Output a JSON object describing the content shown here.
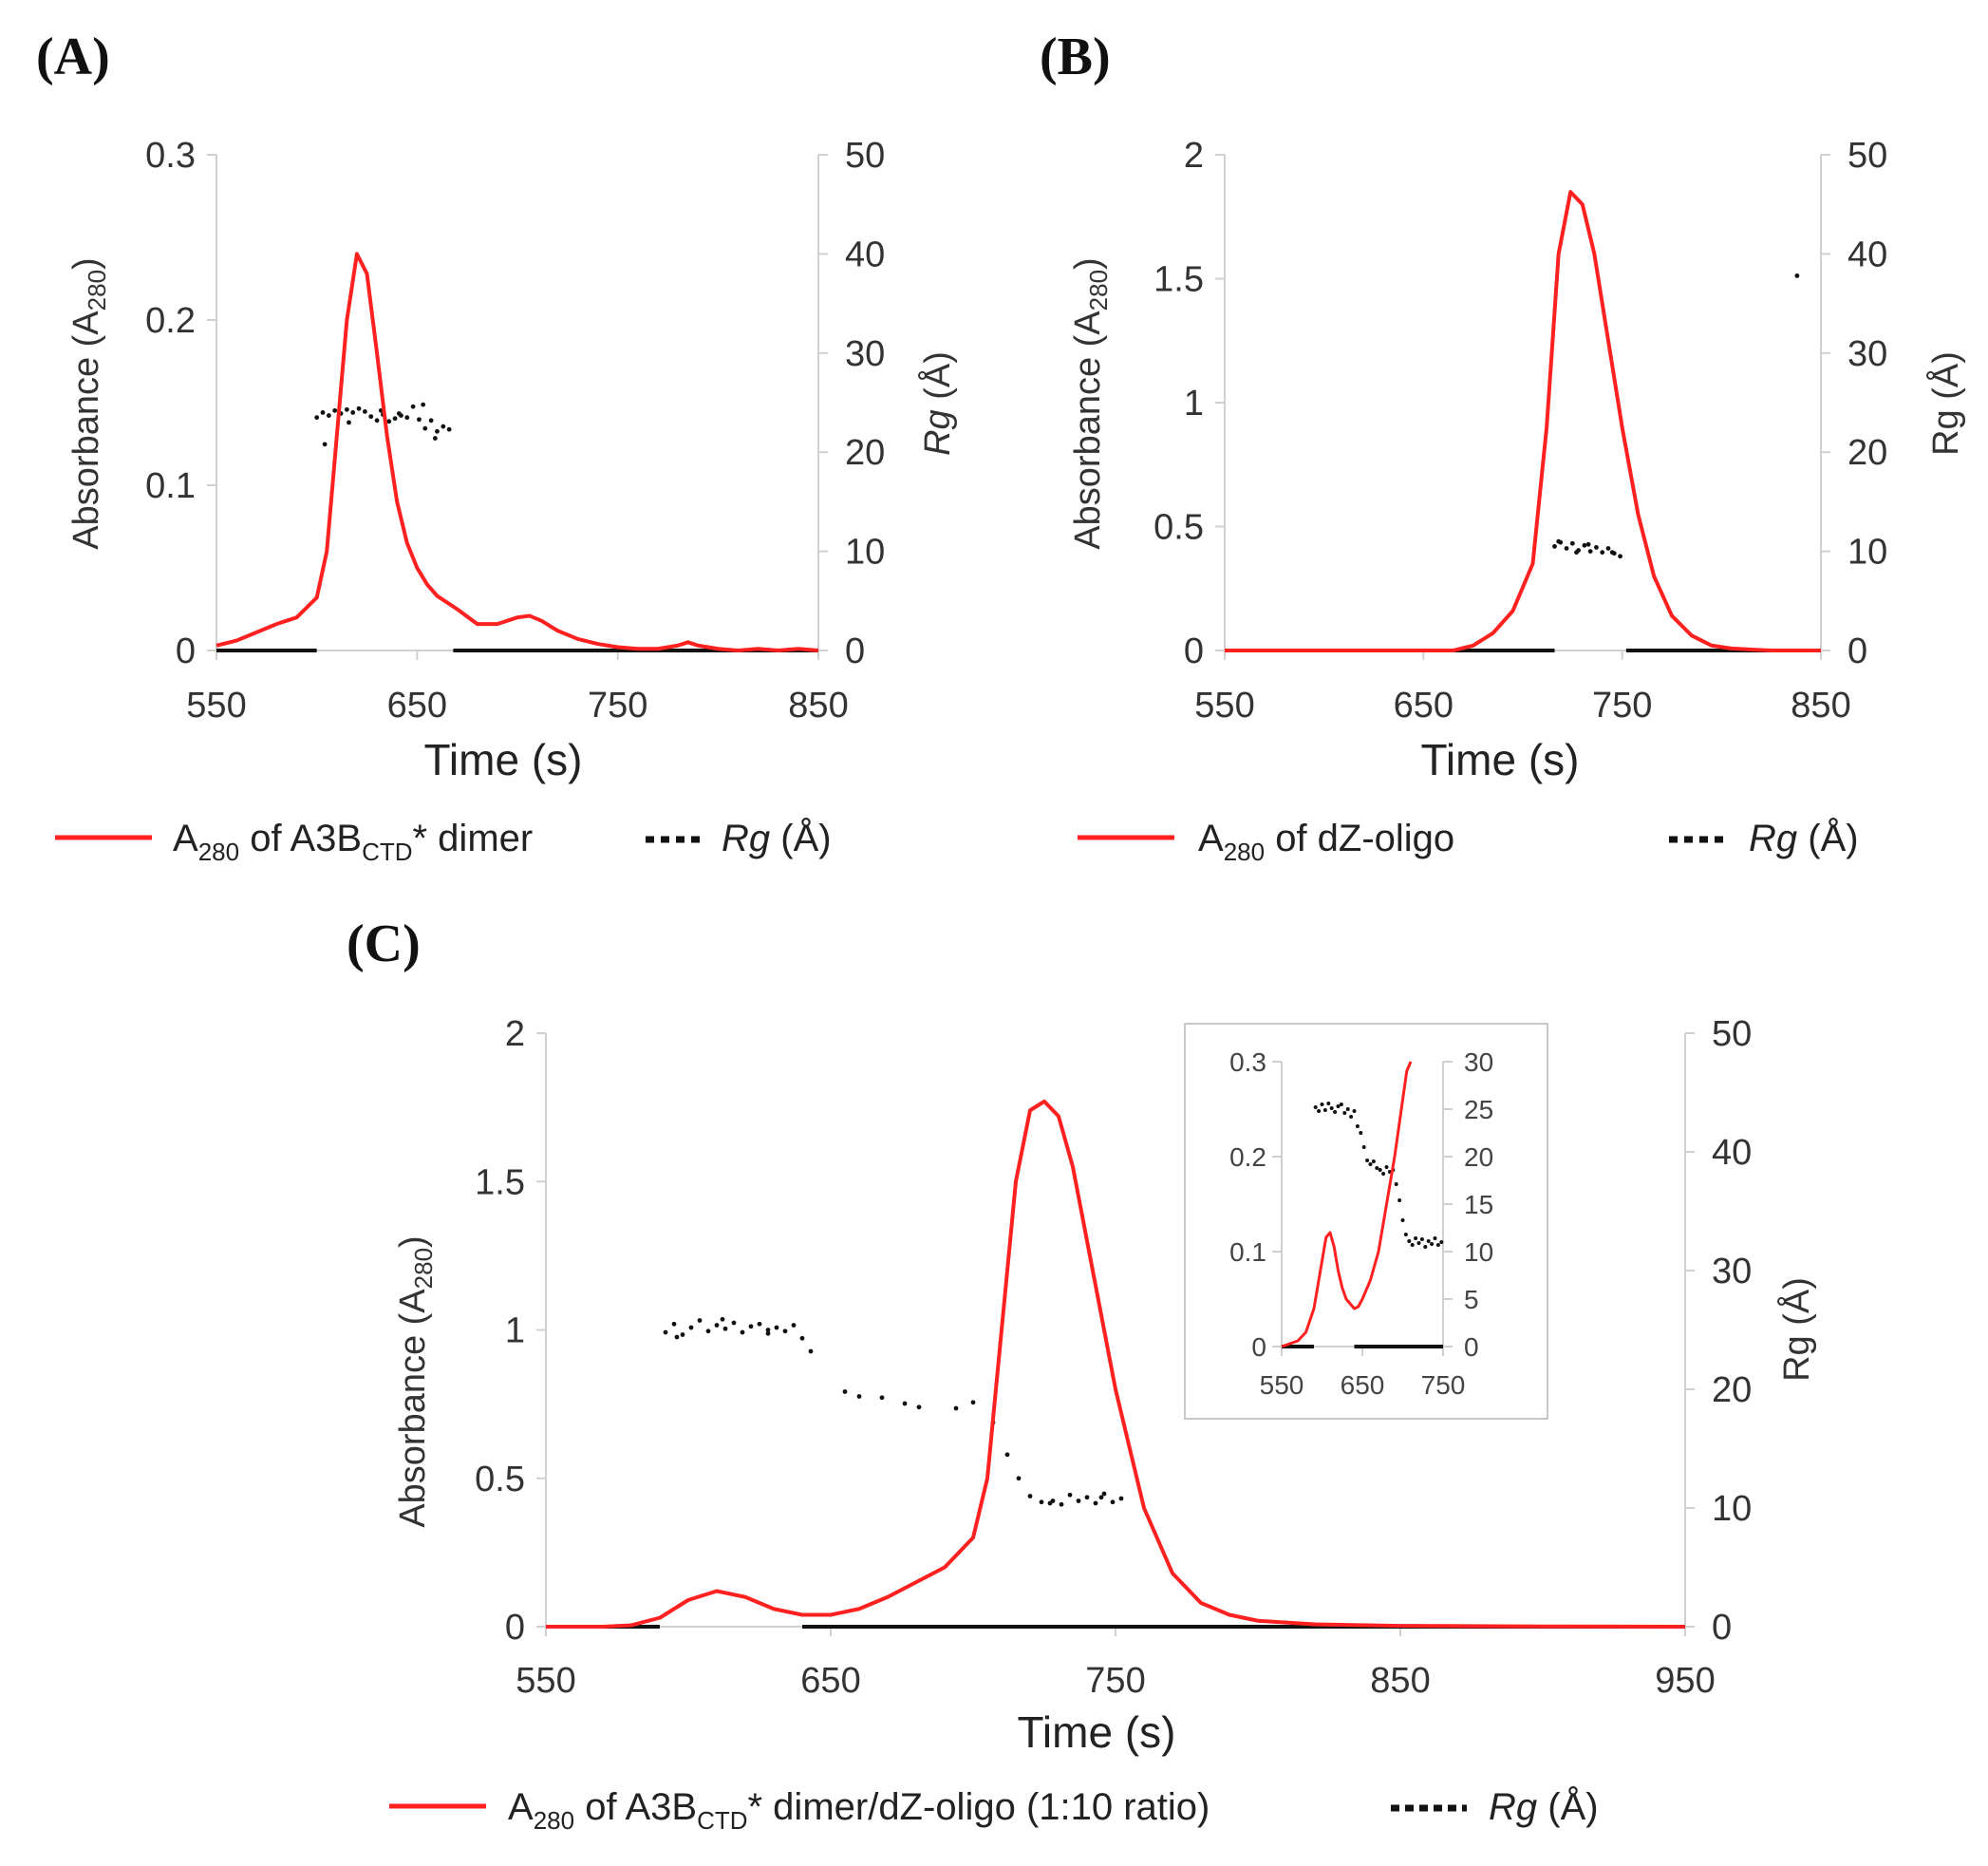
{
  "colors": {
    "absorbance": "#ff2020",
    "rg": "#111111",
    "axis": "#d0d0d0"
  },
  "chart_data": [
    {
      "id": "A",
      "panel_label": "(A)",
      "type": "line",
      "xlabel": "Time (s)",
      "ylabel_main": "Absorbance (A",
      "ylabel_sub": "280",
      "ylabel_end": ")",
      "y2label_italic": "Rg",
      "y2label_rest": " (Å)",
      "xlim": [
        550,
        850
      ],
      "ylim": [
        0,
        0.3
      ],
      "y2lim": [
        0,
        50
      ],
      "xticks": [
        "550",
        "650",
        "750",
        "850"
      ],
      "yticks": [
        "0",
        "0.1",
        "0.2",
        "0.3"
      ],
      "y2ticks": [
        "0",
        "10",
        "20",
        "30",
        "40",
        "50"
      ],
      "legend": {
        "abs_pre": "A",
        "abs_sub1": "280",
        "abs_mid": " of A3B",
        "abs_sub2": "CTD",
        "abs_post": "* dimer",
        "rg_italic": "Rg",
        "rg_rest": " (Å)"
      },
      "absorbance": {
        "x": [
          550,
          560,
          570,
          580,
          590,
          600,
          605,
          610,
          615,
          620,
          625,
          630,
          635,
          640,
          645,
          650,
          655,
          660,
          670,
          680,
          690,
          700,
          706,
          712,
          720,
          730,
          740,
          750,
          760,
          770,
          780,
          785,
          790,
          800,
          810,
          820,
          830,
          840,
          850
        ],
        "y": [
          0.003,
          0.006,
          0.011,
          0.016,
          0.02,
          0.032,
          0.06,
          0.13,
          0.2,
          0.24,
          0.228,
          0.18,
          0.13,
          0.09,
          0.065,
          0.05,
          0.04,
          0.033,
          0.025,
          0.016,
          0.016,
          0.02,
          0.021,
          0.018,
          0.012,
          0.007,
          0.004,
          0.002,
          0.001,
          0.001,
          0.003,
          0.005,
          0.003,
          0.001,
          0.0,
          0.001,
          0.0,
          0.001,
          0.0
        ]
      },
      "rg_points": {
        "x": [
          600,
          603,
          606,
          609,
          612,
          615,
          618,
          621,
          624,
          627,
          630,
          633,
          636,
          639,
          642,
          645,
          648,
          651,
          654,
          657,
          660,
          663,
          666,
          604,
          616,
          632,
          641,
          653,
          659
        ],
        "y": [
          23.5,
          24,
          23.7,
          24.2,
          23.9,
          24.3,
          24,
          24.4,
          24.1,
          23.6,
          23.2,
          23.8,
          23.1,
          23.4,
          23.7,
          23.5,
          24.6,
          23.3,
          22.4,
          23.2,
          22.1,
          22.6,
          22.3,
          20.8,
          23,
          24.2,
          23.9,
          24.8,
          21.4
        ]
      },
      "rg_baseline": [
        [
          550,
          600
        ],
        [
          668,
          850
        ]
      ]
    },
    {
      "id": "B",
      "panel_label": "(B)",
      "type": "line",
      "xlabel": "Time (s)",
      "ylabel_main": "Absorbance (A",
      "ylabel_sub": "280",
      "ylabel_end": ")",
      "y2label_italic": "",
      "y2label_rest": "Rg (Å)",
      "xlim": [
        550,
        850
      ],
      "ylim": [
        0,
        2
      ],
      "y2lim": [
        0,
        50
      ],
      "xticks": [
        "550",
        "650",
        "750",
        "850"
      ],
      "yticks": [
        "0",
        "0.5",
        "1",
        "1.5",
        "2"
      ],
      "y2ticks": [
        "0",
        "10",
        "20",
        "30",
        "40",
        "50"
      ],
      "legend": {
        "abs_pre": "A",
        "abs_sub1": "280",
        "abs_mid": " of dZ-oligo",
        "abs_sub2": "",
        "abs_post": "",
        "rg_italic": "Rg",
        "rg_rest": " (Å)"
      },
      "absorbance": {
        "x": [
          550,
          600,
          650,
          665,
          675,
          685,
          695,
          705,
          712,
          718,
          724,
          730,
          736,
          742,
          750,
          758,
          766,
          775,
          785,
          795,
          805,
          815,
          825,
          850
        ],
        "y": [
          0,
          0,
          0,
          0,
          0.02,
          0.07,
          0.16,
          0.35,
          0.9,
          1.6,
          1.85,
          1.8,
          1.6,
          1.3,
          0.9,
          0.55,
          0.3,
          0.14,
          0.06,
          0.02,
          0.008,
          0.004,
          0.0,
          0.0
        ]
      },
      "rg_points": {
        "x": [
          716,
          719,
          722,
          725,
          728,
          731,
          734,
          737,
          740,
          743,
          746,
          749,
          718,
          727,
          733,
          745,
          838
        ],
        "y": [
          10.5,
          10.9,
          10.3,
          10.8,
          10.1,
          10.6,
          10.0,
          10.4,
          9.9,
          10.3,
          9.8,
          9.5,
          11.0,
          9.9,
          10.7,
          9.9,
          37.8
        ]
      },
      "rg_baseline": [
        [
          550,
          716
        ],
        [
          752,
          850
        ]
      ]
    },
    {
      "id": "C",
      "panel_label": "(C)",
      "type": "line",
      "xlabel": "Time (s)",
      "ylabel_main": "Absorbance (A",
      "ylabel_sub": "280",
      "ylabel_end": ")",
      "y2label_italic": "",
      "y2label_rest": "Rg (Å)",
      "xlim": [
        550,
        950
      ],
      "ylim": [
        0,
        2
      ],
      "y2lim": [
        0,
        50
      ],
      "xticks": [
        "550",
        "650",
        "750",
        "850",
        "950"
      ],
      "yticks": [
        "0",
        "0.5",
        "1",
        "1.5",
        "2"
      ],
      "y2ticks": [
        "0",
        "10",
        "20",
        "30",
        "40",
        "50"
      ],
      "legend": {
        "abs_pre": "A",
        "abs_sub1": "280",
        "abs_mid": " of A3B",
        "abs_sub2": "CTD",
        "abs_post": "* dimer/dZ-oligo (1:10 ratio)",
        "rg_italic": "Rg",
        "rg_rest": " (Å)"
      },
      "absorbance": {
        "x": [
          550,
          570,
          580,
          590,
          600,
          610,
          620,
          630,
          640,
          650,
          660,
          670,
          680,
          690,
          700,
          705,
          710,
          715,
          720,
          725,
          730,
          735,
          740,
          750,
          760,
          770,
          780,
          790,
          800,
          820,
          850,
          900,
          950
        ],
        "y": [
          0,
          0,
          0.005,
          0.03,
          0.09,
          0.12,
          0.1,
          0.06,
          0.04,
          0.04,
          0.06,
          0.1,
          0.15,
          0.2,
          0.3,
          0.5,
          1.0,
          1.5,
          1.74,
          1.77,
          1.72,
          1.55,
          1.3,
          0.8,
          0.4,
          0.18,
          0.08,
          0.04,
          0.02,
          0.008,
          0.003,
          0.001,
          0.0
        ]
      },
      "rg_points": {
        "x": [
          592,
          595,
          598,
          601,
          604,
          607,
          610,
          613,
          616,
          619,
          622,
          625,
          628,
          631,
          634,
          637,
          640,
          643,
          655,
          668,
          681,
          694,
          707,
          712,
          716,
          720,
          724,
          728,
          731,
          734,
          737,
          740,
          743,
          746,
          749,
          752,
          596,
          612,
          628,
          660,
          676,
          700,
          727,
          745
        ],
        "y": [
          24.8,
          25.5,
          24.6,
          25.2,
          25.8,
          24.9,
          25.4,
          25.1,
          25.6,
          24.8,
          25.3,
          25.5,
          24.7,
          25.2,
          24.9,
          25.4,
          24.3,
          23.2,
          19.8,
          19.3,
          18.5,
          18.4,
          17.2,
          14.5,
          12.5,
          11.0,
          10.5,
          10.6,
          10.3,
          11.1,
          10.6,
          10.9,
          10.4,
          11.2,
          10.5,
          10.8,
          24.4,
          25.9,
          25.0,
          19.4,
          18.8,
          18.9,
          10.4,
          10.9
        ]
      },
      "rg_baseline": [
        [
          550,
          590
        ],
        [
          640,
          750
        ],
        [
          750,
          950
        ]
      ]
    },
    {
      "id": "C-inset",
      "panel_label": "",
      "type": "line",
      "xlabel": "",
      "ylabel_main": "",
      "ylabel_sub": "",
      "ylabel_end": "",
      "y2label_italic": "",
      "y2label_rest": "",
      "xlim": [
        550,
        750
      ],
      "ylim": [
        0,
        0.3
      ],
      "y2lim": [
        0,
        30
      ],
      "xticks": [
        "550",
        "650",
        "750"
      ],
      "yticks": [
        "0",
        "0.1",
        "0.2",
        "0.3"
      ],
      "y2ticks": [
        "0",
        "5",
        "10",
        "15",
        "20",
        "25",
        "30"
      ],
      "absorbance": {
        "x": [
          550,
          560,
          570,
          580,
          590,
          600,
          605,
          610,
          615,
          620,
          625,
          630,
          640,
          645,
          650,
          660,
          670,
          680,
          690,
          700,
          705,
          710
        ],
        "y": [
          0,
          0.003,
          0.006,
          0.015,
          0.04,
          0.09,
          0.115,
          0.12,
          0.105,
          0.08,
          0.062,
          0.05,
          0.04,
          0.042,
          0.05,
          0.07,
          0.1,
          0.15,
          0.2,
          0.26,
          0.29,
          0.3
        ]
      },
      "rg_points": {
        "x": [
          592,
          596,
          600,
          604,
          608,
          612,
          616,
          620,
          624,
          628,
          632,
          636,
          640,
          644,
          648,
          652,
          656,
          660,
          664,
          668,
          672,
          676,
          680,
          684,
          688,
          692,
          696,
          700,
          704,
          708,
          712,
          716,
          720,
          724,
          728,
          732,
          736,
          740,
          744,
          748
        ],
        "y": [
          25.2,
          24.8,
          25.5,
          24.9,
          25.6,
          25.1,
          24.7,
          25.3,
          25.5,
          24.6,
          25.0,
          24.2,
          24.8,
          23.2,
          22.5,
          21.0,
          19.6,
          19.2,
          19.5,
          18.8,
          18.6,
          18.2,
          18.9,
          18.4,
          18.6,
          17.1,
          15.4,
          13.3,
          11.8,
          11.1,
          10.7,
          11.4,
          10.9,
          11.3,
          10.5,
          11.1,
          10.8,
          11.4,
          10.7,
          11.0
        ]
      },
      "rg_baseline": [
        [
          550,
          590
        ],
        [
          640,
          750
        ]
      ]
    }
  ]
}
